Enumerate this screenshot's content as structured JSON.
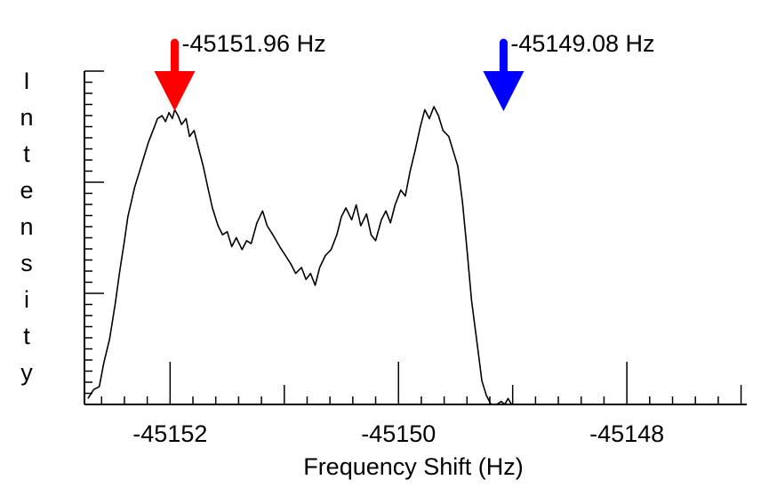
{
  "chart_data": {
    "type": "line",
    "xlabel": "Frequency Shift (Hz)",
    "ylabel": "Intensity",
    "xlim": [
      -45152.75,
      -45146.95
    ],
    "ylim": [
      0,
      1.0
    ],
    "x_ticks": [
      "-45152",
      "-45150",
      "-45148"
    ],
    "grid": false,
    "annotations": [
      {
        "label": "-45151.96 Hz",
        "x": -45151.96,
        "arrow_color": "#ff0000"
      },
      {
        "label": "-45149.08 Hz",
        "x": -45149.08,
        "arrow_color": "#0000ff"
      }
    ],
    "series": [
      {
        "color": "#000000",
        "x": [
          -45152.72,
          -45152.67,
          -45152.62,
          -45152.58,
          -45152.53,
          -45152.48,
          -45152.44,
          -45152.4,
          -45152.37,
          -45152.34,
          -45152.31,
          -45152.27,
          -45152.23,
          -45152.19,
          -45152.14,
          -45152.11,
          -45152.07,
          -45152.04,
          -45152.01,
          -45151.98,
          -45151.96,
          -45151.93,
          -45151.9,
          -45151.86,
          -45151.83,
          -45151.79,
          -45151.75,
          -45151.71,
          -45151.67,
          -45151.63,
          -45151.58,
          -45151.54,
          -45151.5,
          -45151.46,
          -45151.42,
          -45151.37,
          -45151.33,
          -45151.29,
          -45151.24,
          -45151.19,
          -45151.15,
          -45151.1,
          -45151.04,
          -45150.99,
          -45150.94,
          -45150.9,
          -45150.85,
          -45150.81,
          -45150.77,
          -45150.73,
          -45150.69,
          -45150.64,
          -45150.59,
          -45150.54,
          -45150.5,
          -45150.46,
          -45150.41,
          -45150.37,
          -45150.33,
          -45150.28,
          -45150.24,
          -45150.2,
          -45150.15,
          -45150.11,
          -45150.07,
          -45150.03,
          -45149.98,
          -45149.94,
          -45149.9,
          -45149.85,
          -45149.81,
          -45149.77,
          -45149.73,
          -45149.69,
          -45149.65,
          -45149.61,
          -45149.56,
          -45149.52,
          -45149.48,
          -45149.44,
          -45149.4,
          -45149.36,
          -45149.31,
          -45149.27,
          -45149.23,
          -45149.19,
          -45149.14,
          -45149.1,
          -45149.07,
          -45149.04,
          -45149.01,
          -45148.97,
          -45148.93,
          -45148.89,
          -45148.85,
          -45148.81,
          -45148.78,
          -45148.75,
          -45148.72,
          -45148.68,
          -45148.65,
          -45148.62,
          -45148.58,
          -45148.53,
          -45148.47,
          -45148.42,
          -45148.38,
          -45148.33,
          -45148.29,
          -45148.25,
          -45148.2,
          -45148.14
        ],
        "y": [
          0.02,
          0.05,
          0.06,
          0.14,
          0.22,
          0.34,
          0.45,
          0.55,
          0.63,
          0.68,
          0.73,
          0.78,
          0.83,
          0.88,
          0.93,
          0.96,
          0.97,
          0.95,
          0.98,
          0.96,
          0.99,
          0.97,
          0.94,
          0.96,
          0.9,
          0.92,
          0.86,
          0.8,
          0.73,
          0.66,
          0.6,
          0.57,
          0.58,
          0.53,
          0.56,
          0.52,
          0.55,
          0.54,
          0.61,
          0.65,
          0.6,
          0.57,
          0.53,
          0.5,
          0.47,
          0.44,
          0.46,
          0.42,
          0.44,
          0.4,
          0.46,
          0.5,
          0.52,
          0.57,
          0.63,
          0.66,
          0.62,
          0.67,
          0.6,
          0.64,
          0.57,
          0.55,
          0.62,
          0.65,
          0.61,
          0.67,
          0.72,
          0.7,
          0.78,
          0.86,
          0.93,
          0.99,
          0.96,
          1.0,
          0.97,
          0.92,
          0.9,
          0.85,
          0.8,
          0.68,
          0.52,
          0.35,
          0.2,
          0.08,
          0.03,
          0.0,
          0.0,
          0.01,
          0.0,
          0.02,
          0.0,
          0.0,
          0.0,
          0.0,
          0.0,
          0.0,
          0.0,
          0.0,
          0.0,
          0.0,
          0.0,
          0.0,
          0.0,
          0.0,
          0.0,
          0.0,
          0.0,
          0.0,
          0.0,
          0.0,
          0.0,
          0.0
        ]
      }
    ]
  }
}
